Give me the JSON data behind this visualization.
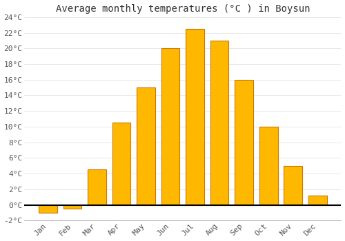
{
  "months": [
    "Jan",
    "Feb",
    "Mar",
    "Apr",
    "May",
    "Jun",
    "Jul",
    "Aug",
    "Sep",
    "Oct",
    "Nov",
    "Dec"
  ],
  "temperatures": [
    -1.0,
    -0.5,
    4.5,
    10.5,
    15.0,
    20.0,
    22.5,
    21.0,
    16.0,
    10.0,
    5.0,
    1.2
  ],
  "bar_color": "#FFB800",
  "bar_edge_color": "#CC7700",
  "title": "Average monthly temperatures (°C ) in Boysun",
  "ylim_min": -2,
  "ylim_max": 24,
  "ytick_step": 2,
  "background_color": "#ffffff",
  "grid_color": "#dddddd",
  "title_fontsize": 10,
  "tick_fontsize": 8,
  "axis_label_color": "#555555",
  "bar_width": 0.75
}
